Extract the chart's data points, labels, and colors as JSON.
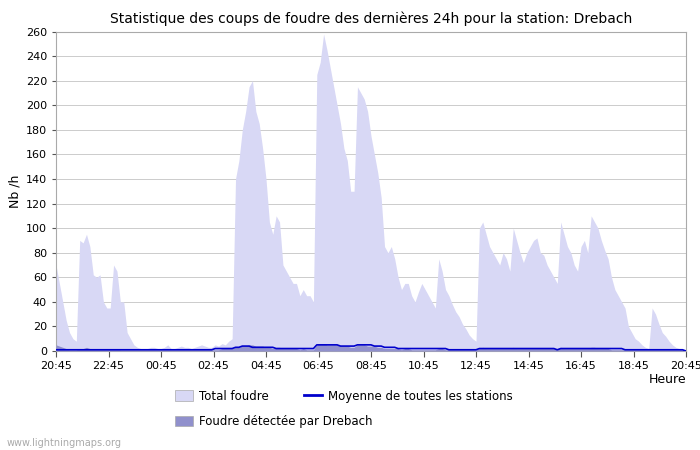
{
  "title": "Statistique des coups de foudre des dernières 24h pour la station: Drebach",
  "xlabel": "Heure",
  "ylabel": "Nb /h",
  "ylim": [
    0,
    260
  ],
  "yticks": [
    0,
    20,
    40,
    60,
    80,
    100,
    120,
    140,
    160,
    180,
    200,
    220,
    240,
    260
  ],
  "xtick_display": [
    "20:45",
    "22:45",
    "00:45",
    "02:45",
    "04:45",
    "06:45",
    "08:45",
    "10:45",
    "12:45",
    "14:45",
    "16:45",
    "18:45",
    "20:45"
  ],
  "background_color": "#ffffff",
  "plot_bg_color": "#ffffff",
  "grid_color": "#cccccc",
  "fill_total_color": "#d8d8f5",
  "fill_station_color": "#9090cc",
  "mean_line_color": "#0000cc",
  "watermark": "www.lightningmaps.org",
  "legend_total": "Total foudre",
  "legend_station": "Foudre détectée par Drebach",
  "legend_mean": "Moyenne de toutes les stations",
  "total_foudre": [
    70,
    55,
    40,
    25,
    15,
    10,
    8,
    90,
    88,
    95,
    85,
    62,
    60,
    62,
    40,
    35,
    35,
    70,
    65,
    40,
    40,
    15,
    10,
    5,
    3,
    2,
    2,
    2,
    3,
    3,
    2,
    2,
    3,
    5,
    2,
    2,
    3,
    4,
    3,
    3,
    2,
    3,
    4,
    5,
    4,
    3,
    3,
    5,
    4,
    6,
    5,
    8,
    10,
    140,
    155,
    180,
    195,
    215,
    220,
    195,
    185,
    165,
    140,
    105,
    95,
    110,
    105,
    70,
    65,
    60,
    55,
    55,
    45,
    50,
    45,
    45,
    40,
    225,
    235,
    258,
    245,
    230,
    215,
    200,
    185,
    165,
    155,
    130,
    130,
    215,
    210,
    205,
    195,
    175,
    160,
    145,
    125,
    85,
    80,
    85,
    75,
    60,
    50,
    55,
    55,
    45,
    40,
    48,
    55,
    50,
    45,
    40,
    35,
    75,
    65,
    50,
    45,
    38,
    32,
    28,
    22,
    18,
    13,
    10,
    8,
    100,
    105,
    95,
    85,
    80,
    75,
    70,
    80,
    75,
    65,
    100,
    90,
    80,
    72,
    80,
    85,
    90,
    92,
    80,
    78,
    70,
    65,
    60,
    55,
    105,
    95,
    85,
    80,
    70,
    65,
    85,
    90,
    80,
    110,
    105,
    100,
    90,
    82,
    75,
    60,
    50,
    45,
    40,
    35,
    20,
    15,
    10,
    8,
    5,
    3,
    2,
    35,
    30,
    22,
    15,
    12,
    8,
    5,
    3,
    2,
    1,
    0
  ],
  "station_foudre": [
    5,
    4,
    3,
    2,
    1,
    1,
    1,
    2,
    2,
    3,
    2,
    2,
    2,
    2,
    2,
    2,
    2,
    2,
    2,
    1,
    1,
    1,
    1,
    1,
    1,
    1,
    1,
    1,
    1,
    1,
    1,
    1,
    1,
    1,
    1,
    1,
    1,
    1,
    1,
    1,
    1,
    1,
    1,
    1,
    1,
    1,
    1,
    1,
    1,
    2,
    2,
    2,
    2,
    3,
    3,
    4,
    4,
    5,
    5,
    4,
    4,
    4,
    3,
    3,
    2,
    3,
    3,
    2,
    2,
    2,
    2,
    2,
    1,
    2,
    1,
    1,
    1,
    5,
    6,
    6,
    5,
    5,
    5,
    5,
    4,
    4,
    4,
    3,
    3,
    5,
    5,
    5,
    4,
    4,
    4,
    3,
    3,
    2,
    2,
    2,
    2,
    2,
    1,
    2,
    2,
    1,
    1,
    1,
    1,
    1,
    1,
    1,
    1,
    2,
    2,
    1,
    1,
    1,
    1,
    1,
    1,
    1,
    1,
    1,
    1,
    2,
    3,
    2,
    2,
    2,
    2,
    2,
    2,
    2,
    2,
    3,
    2,
    2,
    2,
    2,
    2,
    2,
    2,
    2,
    2,
    2,
    2,
    2,
    1,
    3,
    2,
    2,
    2,
    2,
    2,
    2,
    2,
    2,
    3,
    3,
    2,
    2,
    2,
    2,
    1,
    1,
    1,
    1,
    1,
    1,
    1,
    1,
    1,
    1,
    1,
    1,
    1,
    1,
    1,
    1,
    1,
    1,
    1,
    1,
    1,
    1,
    0
  ],
  "mean_line": [
    1,
    1,
    1,
    1,
    1,
    1,
    1,
    1,
    1,
    1,
    1,
    1,
    1,
    1,
    1,
    1,
    1,
    1,
    1,
    1,
    1,
    1,
    1,
    1,
    1,
    1,
    1,
    1,
    1,
    1,
    1,
    1,
    1,
    1,
    1,
    1,
    1,
    1,
    1,
    1,
    1,
    1,
    1,
    1,
    1,
    1,
    1,
    2,
    2,
    2,
    2,
    2,
    2,
    3,
    3,
    4,
    4,
    4,
    3,
    3,
    3,
    3,
    3,
    3,
    3,
    2,
    2,
    2,
    2,
    2,
    2,
    2,
    2,
    2,
    2,
    2,
    2,
    5,
    5,
    5,
    5,
    5,
    5,
    5,
    4,
    4,
    4,
    4,
    4,
    5,
    5,
    5,
    5,
    5,
    4,
    4,
    4,
    3,
    3,
    3,
    3,
    2,
    2,
    2,
    2,
    2,
    2,
    2,
    2,
    2,
    2,
    2,
    2,
    2,
    2,
    2,
    1,
    1,
    1,
    1,
    1,
    1,
    1,
    1,
    1,
    2,
    2,
    2,
    2,
    2,
    2,
    2,
    2,
    2,
    2,
    2,
    2,
    2,
    2,
    2,
    2,
    2,
    2,
    2,
    2,
    2,
    2,
    2,
    1,
    2,
    2,
    2,
    2,
    2,
    2,
    2,
    2,
    2,
    2,
    2,
    2,
    2,
    2,
    2,
    2,
    2,
    2,
    2,
    1,
    1,
    1,
    1,
    1,
    1,
    1,
    1,
    1,
    1,
    1,
    1,
    1,
    1,
    1,
    1,
    1,
    1,
    0
  ]
}
